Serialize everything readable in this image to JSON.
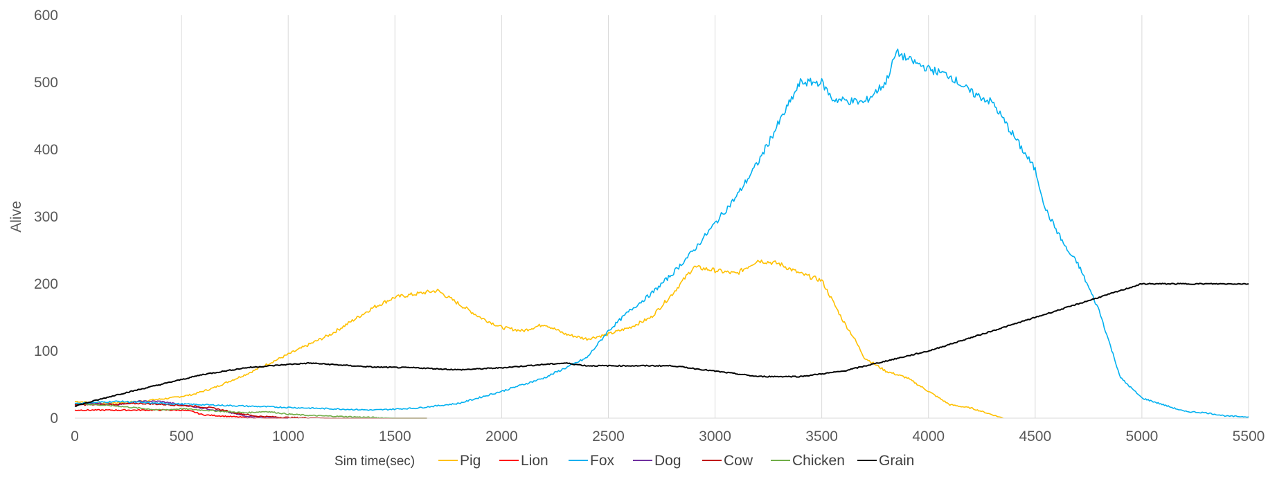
{
  "chart_data": {
    "type": "line",
    "title": "",
    "xlabel": "Sim time(sec)",
    "ylabel": "Alive",
    "xlim": [
      0,
      5500
    ],
    "ylim": [
      0,
      600
    ],
    "xticks": [
      0,
      500,
      1000,
      1500,
      2000,
      2500,
      3000,
      3500,
      4000,
      4500,
      5000,
      5500
    ],
    "yticks": [
      0,
      100,
      200,
      300,
      400,
      500,
      600
    ],
    "grid": "vertical",
    "legend_position": "bottom",
    "series": [
      {
        "name": "Pig",
        "color": "#FFC000",
        "points": [
          [
            0,
            25
          ],
          [
            150,
            22
          ],
          [
            300,
            25
          ],
          [
            450,
            30
          ],
          [
            550,
            35
          ],
          [
            650,
            45
          ],
          [
            800,
            65
          ],
          [
            1000,
            95
          ],
          [
            1200,
            125
          ],
          [
            1300,
            145
          ],
          [
            1400,
            165
          ],
          [
            1500,
            180
          ],
          [
            1600,
            185
          ],
          [
            1700,
            190
          ],
          [
            1800,
            170
          ],
          [
            1900,
            150
          ],
          [
            2000,
            135
          ],
          [
            2100,
            130
          ],
          [
            2200,
            140
          ],
          [
            2300,
            125
          ],
          [
            2400,
            118
          ],
          [
            2500,
            125
          ],
          [
            2600,
            135
          ],
          [
            2700,
            150
          ],
          [
            2800,
            185
          ],
          [
            2900,
            225
          ],
          [
            3000,
            220
          ],
          [
            3100,
            215
          ],
          [
            3200,
            235
          ],
          [
            3300,
            230
          ],
          [
            3400,
            215
          ],
          [
            3500,
            205
          ],
          [
            3550,
            175
          ],
          [
            3600,
            145
          ],
          [
            3650,
            120
          ],
          [
            3700,
            90
          ],
          [
            3800,
            70
          ],
          [
            3900,
            60
          ],
          [
            4000,
            40
          ],
          [
            4100,
            20
          ],
          [
            4200,
            15
          ],
          [
            4300,
            5
          ],
          [
            4350,
            0
          ]
        ]
      },
      {
        "name": "Lion",
        "color": "#FF0000",
        "points": [
          [
            0,
            12
          ],
          [
            500,
            12
          ],
          [
            550,
            10
          ],
          [
            600,
            5
          ],
          [
            700,
            3
          ],
          [
            800,
            1
          ],
          [
            900,
            0
          ],
          [
            1000,
            0
          ]
        ]
      },
      {
        "name": "Fox",
        "color": "#00B0F0",
        "points": [
          [
            0,
            22
          ],
          [
            200,
            25
          ],
          [
            400,
            22
          ],
          [
            600,
            20
          ],
          [
            800,
            18
          ],
          [
            1000,
            16
          ],
          [
            1200,
            14
          ],
          [
            1400,
            12
          ],
          [
            1600,
            15
          ],
          [
            1800,
            22
          ],
          [
            2000,
            40
          ],
          [
            2200,
            60
          ],
          [
            2400,
            90
          ],
          [
            2500,
            130
          ],
          [
            2600,
            160
          ],
          [
            2700,
            185
          ],
          [
            2800,
            215
          ],
          [
            2900,
            250
          ],
          [
            3000,
            290
          ],
          [
            3100,
            330
          ],
          [
            3200,
            380
          ],
          [
            3300,
            440
          ],
          [
            3400,
            500
          ],
          [
            3500,
            500
          ],
          [
            3550,
            475
          ],
          [
            3700,
            470
          ],
          [
            3800,
            500
          ],
          [
            3850,
            545
          ],
          [
            3900,
            535
          ],
          [
            4000,
            520
          ],
          [
            4100,
            510
          ],
          [
            4200,
            485
          ],
          [
            4300,
            470
          ],
          [
            4400,
            420
          ],
          [
            4500,
            370
          ],
          [
            4550,
            310
          ],
          [
            4650,
            250
          ],
          [
            4700,
            230
          ],
          [
            4800,
            160
          ],
          [
            4900,
            60
          ],
          [
            5000,
            30
          ],
          [
            5100,
            20
          ],
          [
            5200,
            10
          ],
          [
            5300,
            8
          ],
          [
            5400,
            3
          ],
          [
            5500,
            2
          ]
        ]
      },
      {
        "name": "Dog",
        "color": "#7030A0",
        "points": [
          [
            0,
            20
          ],
          [
            100,
            22
          ],
          [
            200,
            20
          ],
          [
            300,
            25
          ],
          [
            400,
            25
          ],
          [
            500,
            20
          ],
          [
            600,
            15
          ],
          [
            700,
            10
          ],
          [
            800,
            3
          ],
          [
            900,
            1
          ],
          [
            1000,
            0
          ]
        ]
      },
      {
        "name": "Cow",
        "color": "#C00000",
        "points": [
          [
            0,
            20
          ],
          [
            150,
            20
          ],
          [
            300,
            22
          ],
          [
            450,
            20
          ],
          [
            550,
            18
          ],
          [
            650,
            15
          ],
          [
            750,
            8
          ],
          [
            850,
            3
          ],
          [
            1000,
            1
          ],
          [
            1200,
            0
          ],
          [
            1650,
            0
          ]
        ]
      },
      {
        "name": "Chicken",
        "color": "#70AD47",
        "points": [
          [
            0,
            22
          ],
          [
            100,
            20
          ],
          [
            200,
            18
          ],
          [
            300,
            15
          ],
          [
            400,
            12
          ],
          [
            500,
            14
          ],
          [
            600,
            12
          ],
          [
            700,
            10
          ],
          [
            800,
            8
          ],
          [
            900,
            10
          ],
          [
            1000,
            6
          ],
          [
            1100,
            4
          ],
          [
            1200,
            3
          ],
          [
            1300,
            2
          ],
          [
            1400,
            1
          ],
          [
            1500,
            0
          ],
          [
            1650,
            0
          ]
        ]
      },
      {
        "name": "Grain",
        "color": "#000000",
        "points": [
          [
            0,
            18
          ],
          [
            200,
            35
          ],
          [
            400,
            50
          ],
          [
            600,
            65
          ],
          [
            800,
            75
          ],
          [
            1000,
            80
          ],
          [
            1100,
            82
          ],
          [
            1200,
            80
          ],
          [
            1400,
            76
          ],
          [
            1600,
            75
          ],
          [
            1800,
            72
          ],
          [
            2000,
            75
          ],
          [
            2200,
            80
          ],
          [
            2300,
            82
          ],
          [
            2400,
            78
          ],
          [
            2600,
            78
          ],
          [
            2800,
            78
          ],
          [
            3000,
            70
          ],
          [
            3200,
            62
          ],
          [
            3400,
            62
          ],
          [
            3600,
            70
          ],
          [
            3800,
            85
          ],
          [
            4000,
            100
          ],
          [
            4200,
            120
          ],
          [
            4400,
            140
          ],
          [
            4600,
            160
          ],
          [
            4800,
            180
          ],
          [
            5000,
            200
          ],
          [
            5500,
            200
          ]
        ]
      }
    ]
  }
}
